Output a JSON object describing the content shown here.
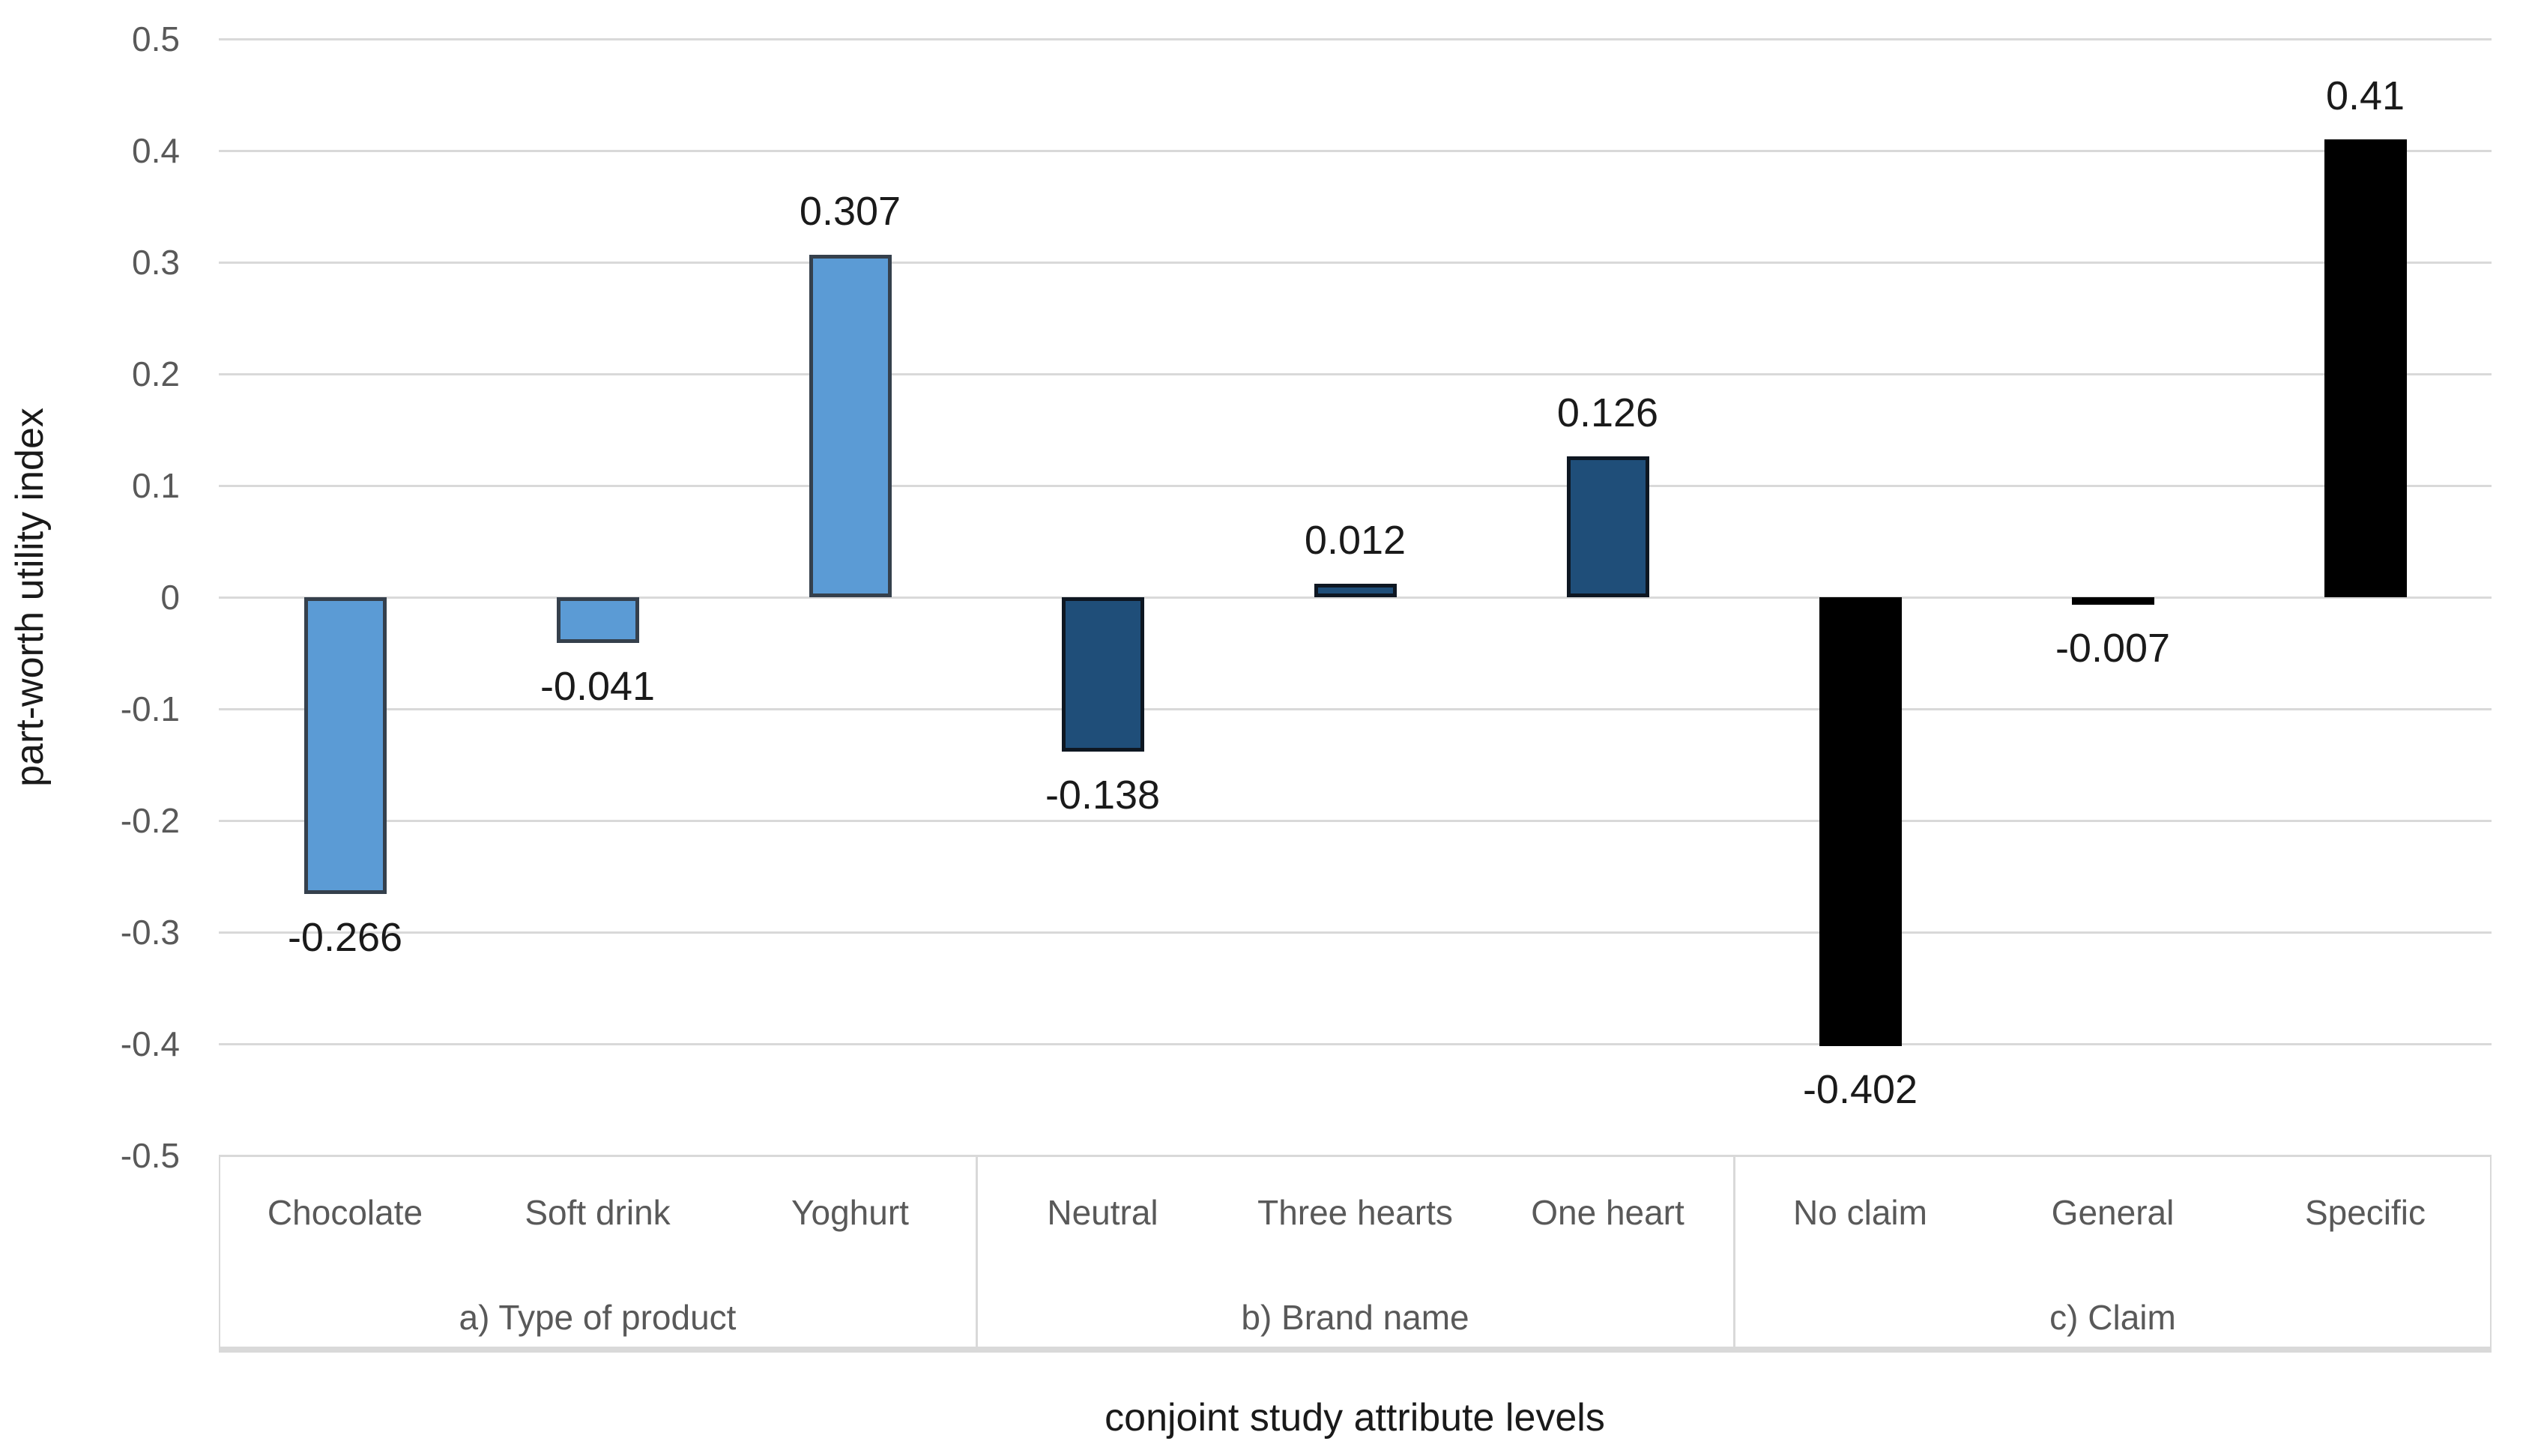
{
  "chart_data": {
    "type": "bar",
    "title": "",
    "ylabel": "part-worth utility index",
    "xlabel": "conjoint study attribute levels",
    "ylim": [
      -0.5,
      0.5
    ],
    "ytick_step": 0.1,
    "yticks": [
      "0.5",
      "0.4",
      "0.3",
      "0.2",
      "0.1",
      "0",
      "-0.1",
      "-0.2",
      "-0.3",
      "-0.4",
      "-0.5"
    ],
    "grid": true,
    "legend_position": "none",
    "groups": [
      {
        "label": "a) Type of product",
        "bar_color": "#5B9BD5",
        "bar_border_color": "#35404C",
        "categories": [
          "Chocolate",
          "Soft drink",
          "Yoghurt"
        ],
        "values": [
          -0.266,
          -0.041,
          0.307
        ],
        "value_labels": [
          "-0.266",
          "-0.041",
          "0.307"
        ]
      },
      {
        "label": "b) Brand name",
        "bar_color": "#1F4E79",
        "bar_border_color": "#0E1722",
        "categories": [
          "Neutral",
          "Three hearts",
          "One heart"
        ],
        "values": [
          -0.138,
          0.012,
          0.126
        ],
        "value_labels": [
          "-0.138",
          "0.012",
          "0.126"
        ]
      },
      {
        "label": "c) Claim",
        "bar_color": "#000000",
        "bar_border_color": "#000000",
        "categories": [
          "No claim",
          "General",
          "Specific"
        ],
        "values": [
          -0.402,
          -0.007,
          0.41
        ],
        "value_labels": [
          "-0.402",
          "-0.007",
          "0.41"
        ]
      }
    ],
    "colors": {
      "background": "#FFFFFF",
      "gridline": "#D9D9D9",
      "tick_text": "#595959",
      "category_text": "#595959",
      "group_text": "#595959",
      "value_label_text": "#1A1A1A",
      "axis_title_text": "#1A1A1A",
      "box_border": "#D9D9D9",
      "box_bottom_band": "#D9D9D9"
    }
  }
}
